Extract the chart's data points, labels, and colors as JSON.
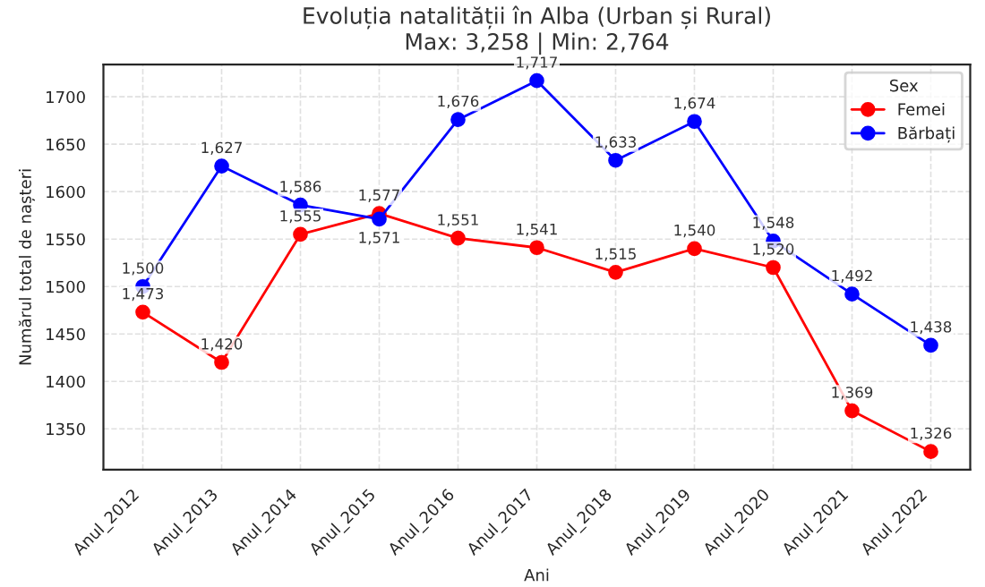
{
  "chart_data": {
    "type": "line",
    "title": "Evoluția natalității în Alba (Urban și Rural)",
    "subtitle": "Max: 3,258 | Min: 2,764",
    "xlabel": "Ani",
    "ylabel": "Numărul total de nașteri",
    "legend_title": "Sex",
    "categories": [
      "Anul_2012",
      "Anul_2013",
      "Anul_2014",
      "Anul_2015",
      "Anul_2016",
      "Anul_2017",
      "Anul_2018",
      "Anul_2019",
      "Anul_2020",
      "Anul_2021",
      "Anul_2022"
    ],
    "series": [
      {
        "name": "Femei",
        "color": "#ff0000",
        "values": [
          1473,
          1420,
          1555,
          1577,
          1551,
          1541,
          1515,
          1540,
          1520,
          1369,
          1326
        ],
        "value_labels": [
          "1,473",
          "1,420",
          "1,555",
          "1,577",
          "1,551",
          "1,541",
          "1,515",
          "1,540",
          "1,520",
          "1,369",
          "1,326"
        ]
      },
      {
        "name": "Bărbați",
        "color": "#0000ff",
        "values": [
          1500,
          1627,
          1586,
          1571,
          1676,
          1717,
          1633,
          1674,
          1548,
          1492,
          1438
        ],
        "value_labels": [
          "1,500",
          "1,627",
          "1,586",
          "1,571",
          "1,676",
          "1,717",
          "1,633",
          "1,674",
          "1,548",
          "1,492",
          "1,438"
        ]
      }
    ],
    "ylim": [
      1307,
      1734
    ],
    "yticks": [
      1350,
      1400,
      1450,
      1500,
      1550,
      1600,
      1650,
      1700
    ],
    "grid": true,
    "legend": "top right",
    "marker": "circle",
    "line_style": "solid"
  }
}
